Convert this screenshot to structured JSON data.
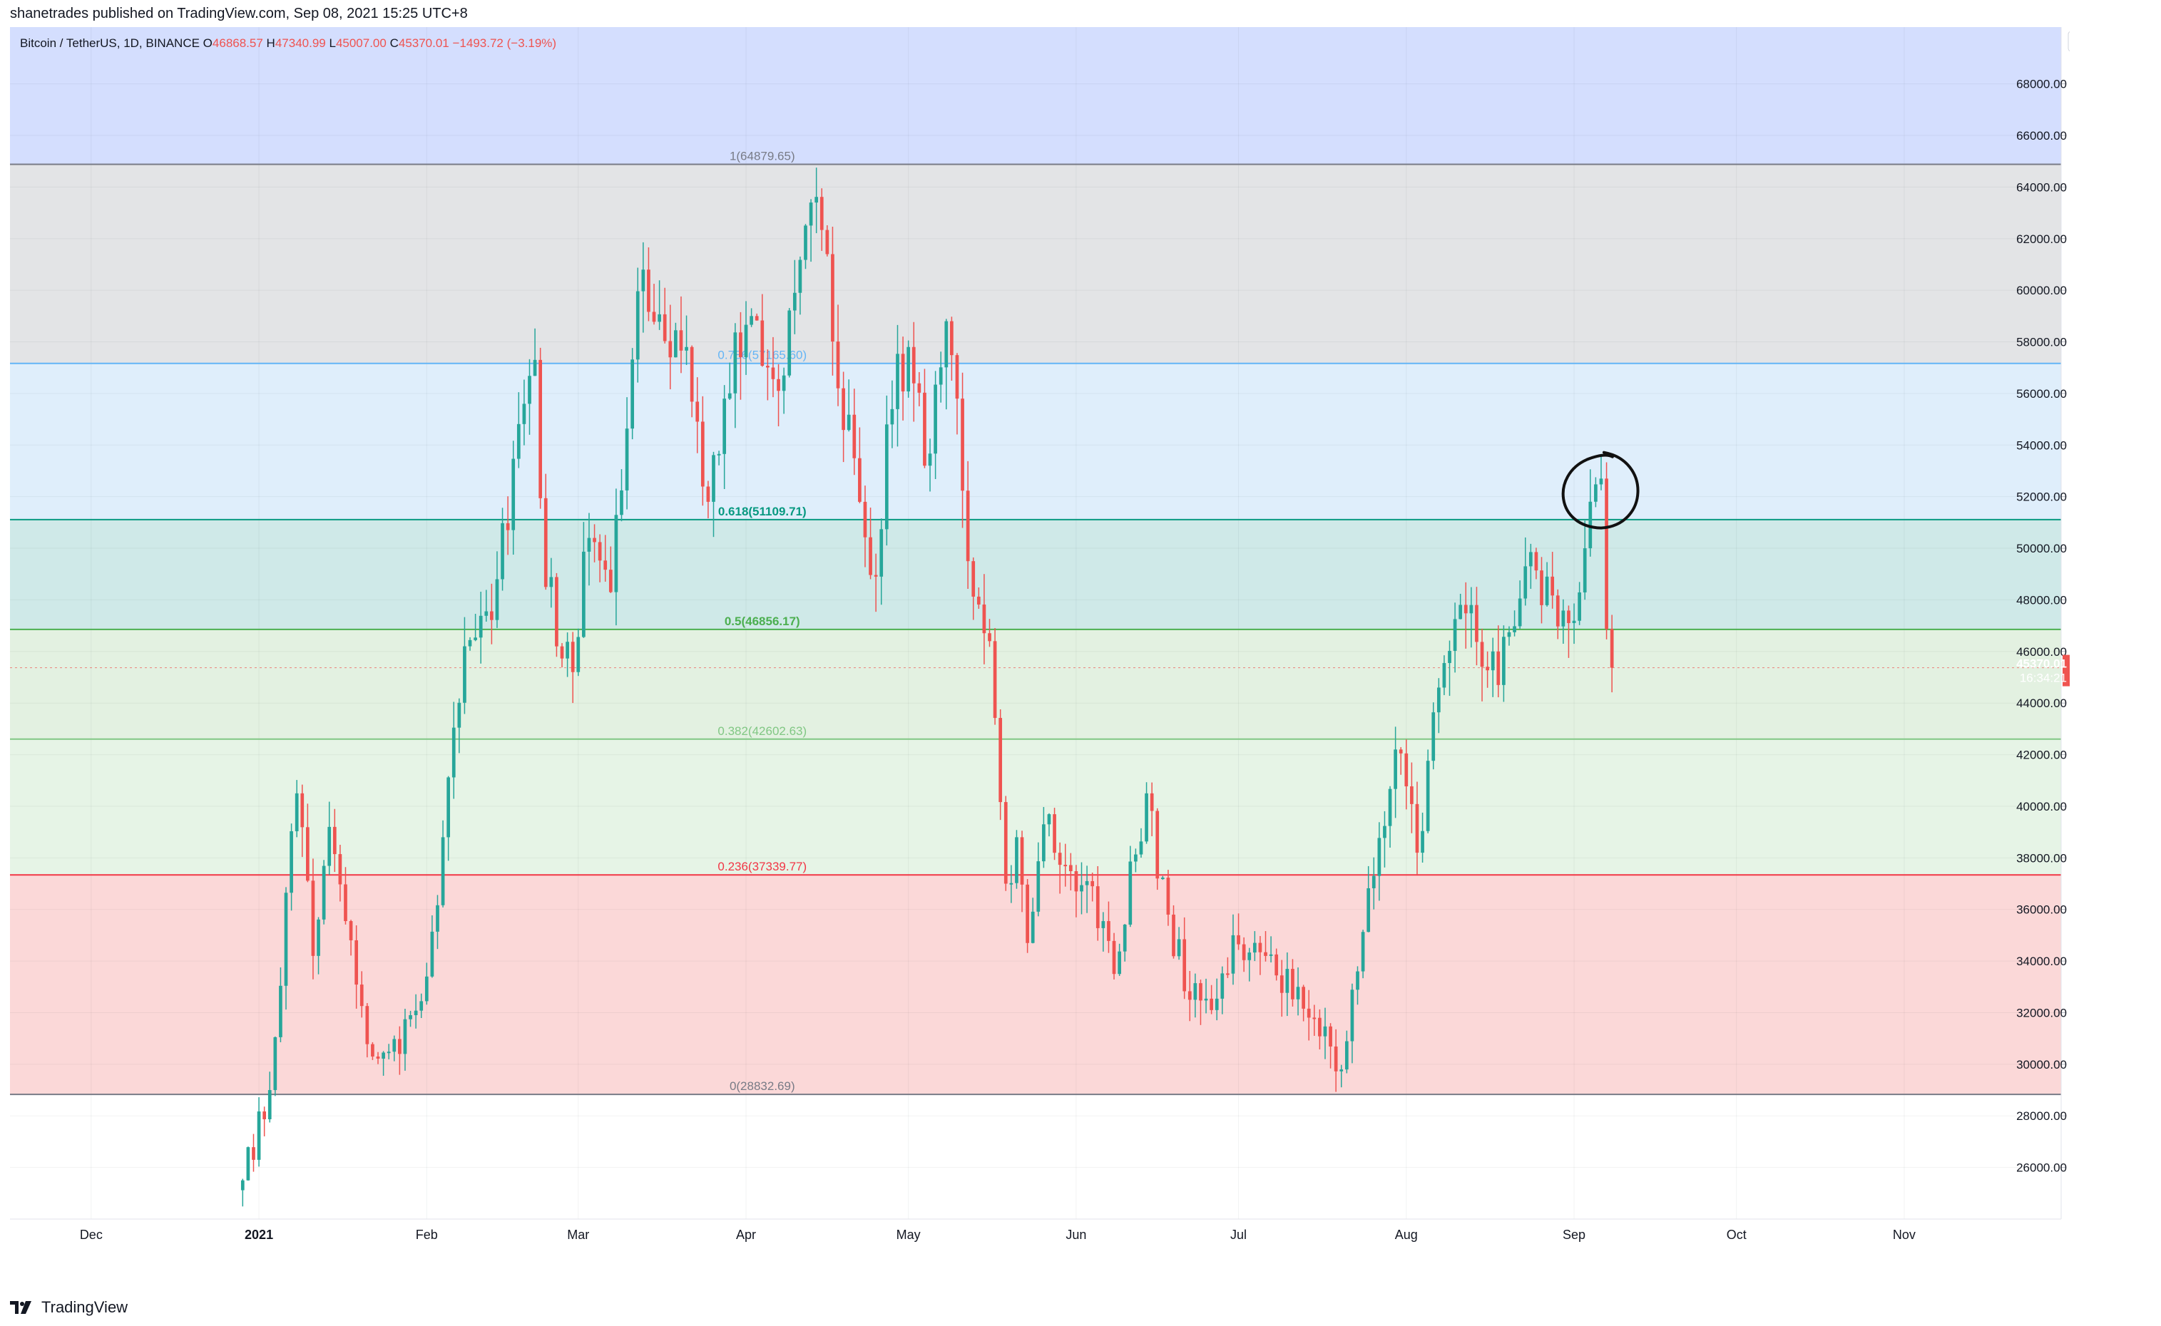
{
  "header": {
    "published_by": "shanetrades published on TradingView.com, Sep 08, 2021 15:25 UTC+8"
  },
  "footer": {
    "brand": "TradingView"
  },
  "colors": {
    "up": "#26a69a",
    "down": "#ef5350",
    "zone_above": "#d4defe",
    "zone_1": "#e3e4e6",
    "zone_786": "#dfeefb",
    "zone_618": "#cfe9e8",
    "zone_5": "#e3f1e1",
    "zone_382": "#e6f4e6",
    "zone_236": "#fbd8d8",
    "price_label_bg": "#ef5350"
  },
  "chart_data": {
    "type": "candlestick",
    "symbol": "Bitcoin / TetherUS, 1D, BINANCE",
    "ohlc": {
      "o_label": "O",
      "o": "46868.57",
      "h_label": "H",
      "h": "47340.99",
      "l_label": "L",
      "l": "45007.00",
      "c_label": "C",
      "c": "45370.01",
      "change": "−1493.72 (−3.19%)"
    },
    "currency": "USDT",
    "y_axis": {
      "min": 24000,
      "max": 70200,
      "ticks": [
        "26000.00",
        "28000.00",
        "30000.00",
        "32000.00",
        "34000.00",
        "36000.00",
        "38000.00",
        "40000.00",
        "42000.00",
        "44000.00",
        "46000.00",
        "48000.00",
        "50000.00",
        "52000.00",
        "54000.00",
        "56000.00",
        "58000.00",
        "60000.00",
        "62000.00",
        "64000.00",
        "66000.00",
        "68000.00"
      ]
    },
    "x_axis": {
      "start_date": "2020-11-16",
      "end_date": "2021-11-30",
      "ticks": [
        {
          "date": "2020-12-01",
          "label": "Dec",
          "bold": false
        },
        {
          "date": "2021-01-01",
          "label": "2021",
          "bold": true
        },
        {
          "date": "2021-02-01",
          "label": "Feb",
          "bold": false
        },
        {
          "date": "2021-03-01",
          "label": "Mar",
          "bold": false
        },
        {
          "date": "2021-04-01",
          "label": "Apr",
          "bold": false
        },
        {
          "date": "2021-05-01",
          "label": "May",
          "bold": false
        },
        {
          "date": "2021-06-01",
          "label": "Jun",
          "bold": false
        },
        {
          "date": "2021-07-01",
          "label": "Jul",
          "bold": false
        },
        {
          "date": "2021-08-01",
          "label": "Aug",
          "bold": false
        },
        {
          "date": "2021-09-01",
          "label": "Sep",
          "bold": false
        },
        {
          "date": "2021-10-01",
          "label": "Oct",
          "bold": false
        },
        {
          "date": "2021-11-01",
          "label": "Nov",
          "bold": false
        }
      ]
    },
    "fib_levels": [
      {
        "label": "1(64879.65)",
        "price": 64879.65,
        "line_color": "#787b86",
        "text_color": "#787b86",
        "fill_to": 57165.6,
        "fill": "#e3e4e6"
      },
      {
        "label": "0.786(57165.60)",
        "price": 57165.6,
        "line_color": "#64b5f6",
        "text_color": "#64b5f6",
        "fill_to": 51109.71,
        "fill": "#dfeefb"
      },
      {
        "label": "0.618(51109.71)",
        "price": 51109.71,
        "line_color": "#089981",
        "text_color": "#089981",
        "fill_to": 46856.17,
        "fill": "#cfe9e8"
      },
      {
        "label": "0.5(46856.17)",
        "price": 46856.17,
        "line_color": "#4caf50",
        "text_color": "#4caf50",
        "fill_to": 42602.63,
        "fill": "#e3f1e1"
      },
      {
        "label": "0.382(42602.63)",
        "price": 42602.63,
        "line_color": "#81c784",
        "text_color": "#81c784",
        "fill_to": 37339.77,
        "fill": "#e6f4e6"
      },
      {
        "label": "0.236(37339.77)",
        "price": 37339.77,
        "line_color": "#f23645",
        "text_color": "#f23645",
        "fill_to": 28832.69,
        "fill": "#fbd8d8"
      },
      {
        "label": "0(28832.69)",
        "price": 28832.69,
        "line_color": "#787b86",
        "text_color": "#787b86",
        "fill_to": null,
        "fill": null
      }
    ],
    "last_price": {
      "value": 45370.01,
      "label": "45370.01",
      "countdown": "16:34:21"
    },
    "anchors": [
      [
        "2020-12-29",
        25500
      ],
      [
        "2021-01-03",
        29000
      ],
      [
        "2021-01-08",
        40500
      ],
      [
        "2021-01-11",
        34200
      ],
      [
        "2021-01-14",
        39200
      ],
      [
        "2021-01-22",
        30300
      ],
      [
        "2021-01-27",
        30400
      ],
      [
        "2021-02-01",
        33400
      ],
      [
        "2021-02-08",
        46200
      ],
      [
        "2021-02-14",
        48800
      ],
      [
        "2021-02-21",
        57300
      ],
      [
        "2021-02-23",
        48500
      ],
      [
        "2021-02-28",
        45200
      ],
      [
        "2021-03-03",
        50400
      ],
      [
        "2021-03-07",
        48300
      ],
      [
        "2021-03-13",
        60800
      ],
      [
        "2021-03-18",
        57400
      ],
      [
        "2021-03-21",
        57800
      ],
      [
        "2021-03-25",
        51800
      ],
      [
        "2021-03-28",
        55800
      ],
      [
        "2021-04-02",
        59000
      ],
      [
        "2021-04-07",
        56100
      ],
      [
        "2021-04-10",
        59900
      ],
      [
        "2021-04-13",
        63400
      ],
      [
        "2021-04-16",
        61400
      ],
      [
        "2021-04-18",
        56200
      ],
      [
        "2021-04-22",
        51800
      ],
      [
        "2021-04-25",
        48900
      ],
      [
        "2021-04-27",
        54800
      ],
      [
        "2021-05-01",
        57800
      ],
      [
        "2021-05-04",
        53200
      ],
      [
        "2021-05-08",
        58800
      ],
      [
        "2021-05-10",
        55800
      ],
      [
        "2021-05-12",
        49500
      ],
      [
        "2021-05-16",
        46400
      ],
      [
        "2021-05-19",
        37000
      ],
      [
        "2021-05-21",
        38800
      ],
      [
        "2021-05-23",
        34700
      ],
      [
        "2021-05-26",
        39300
      ],
      [
        "2021-06-01",
        36700
      ],
      [
        "2021-06-04",
        36900
      ],
      [
        "2021-06-08",
        33500
      ],
      [
        "2021-06-14",
        40500
      ],
      [
        "2021-06-18",
        35800
      ],
      [
        "2021-06-22",
        32500
      ],
      [
        "2021-06-26",
        32100
      ],
      [
        "2021-06-30",
        35000
      ],
      [
        "2021-07-06",
        34200
      ],
      [
        "2021-07-12",
        33000
      ],
      [
        "2021-07-15",
        31800
      ],
      [
        "2021-07-20",
        29800
      ],
      [
        "2021-07-23",
        33600
      ],
      [
        "2021-07-26",
        37300
      ],
      [
        "2021-07-30",
        42200
      ],
      [
        "2021-08-03",
        38200
      ],
      [
        "2021-08-07",
        44600
      ],
      [
        "2021-08-13",
        47800
      ],
      [
        "2021-08-18",
        44700
      ],
      [
        "2021-08-23",
        49300
      ],
      [
        "2021-08-27",
        48900
      ],
      [
        "2021-08-31",
        47100
      ],
      [
        "2021-09-03",
        50000
      ],
      [
        "2021-09-06",
        52700
      ],
      [
        "2021-09-07",
        46868.57
      ],
      [
        "2021-09-08",
        45370.01
      ]
    ],
    "annotations": [
      {
        "type": "hand-drawn circle",
        "date": "2021-09-06",
        "price": 52000
      }
    ]
  }
}
